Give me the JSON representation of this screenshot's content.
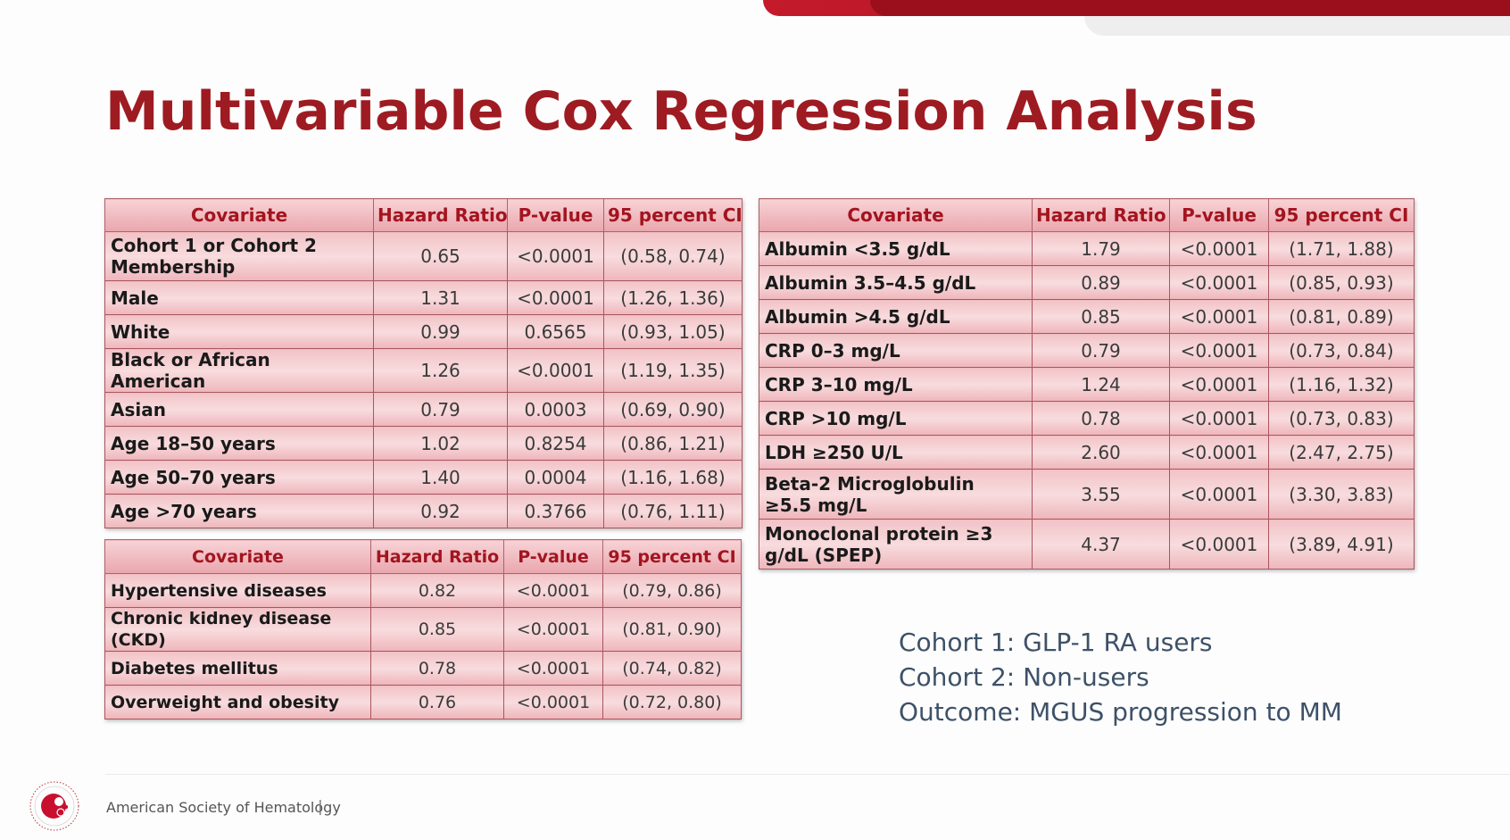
{
  "title": "Multivariable Cox Regression Analysis",
  "headers": {
    "covariate": "Covariate",
    "hazard_ratio": "Hazard Ratio",
    "p_value": "P-value",
    "ci": "95 percent CI"
  },
  "table_demographics": [
    {
      "covariate": "Cohort 1 or Cohort 2 Membership",
      "hr": "0.65",
      "p": "<0.0001",
      "ci": "(0.58, 0.74)"
    },
    {
      "covariate": "Male",
      "hr": "1.31",
      "p": "<0.0001",
      "ci": "(1.26, 1.36)"
    },
    {
      "covariate": "White",
      "hr": "0.99",
      "p": "0.6565",
      "ci": "(0.93, 1.05)"
    },
    {
      "covariate": "Black or African American",
      "hr": "1.26",
      "p": "<0.0001",
      "ci": "(1.19, 1.35)"
    },
    {
      "covariate": "Asian",
      "hr": "0.79",
      "p": "0.0003",
      "ci": "(0.69, 0.90)"
    },
    {
      "covariate": "Age 18–50 years",
      "hr": "1.02",
      "p": "0.8254",
      "ci": "(0.86, 1.21)"
    },
    {
      "covariate": "Age 50–70 years",
      "hr": "1.40",
      "p": "0.0004",
      "ci": "(1.16, 1.68)"
    },
    {
      "covariate": "Age >70 years",
      "hr": "0.92",
      "p": "0.3766",
      "ci": "(0.76, 1.11)"
    }
  ],
  "table_comorbidities": [
    {
      "covariate": "Hypertensive diseases",
      "hr": "0.82",
      "p": "<0.0001",
      "ci": "(0.79, 0.86)"
    },
    {
      "covariate": "Chronic kidney disease (CKD)",
      "hr": "0.85",
      "p": "<0.0001",
      "ci": "(0.81, 0.90)"
    },
    {
      "covariate": "Diabetes mellitus",
      "hr": "0.78",
      "p": "<0.0001",
      "ci": "(0.74, 0.82)"
    },
    {
      "covariate": "Overweight and obesity",
      "hr": "0.76",
      "p": "<0.0001",
      "ci": "(0.72, 0.80)"
    }
  ],
  "table_labs": [
    {
      "covariate": "Albumin <3.5 g/dL",
      "hr": "1.79",
      "p": "<0.0001",
      "ci": "(1.71, 1.88)"
    },
    {
      "covariate": "Albumin 3.5–4.5 g/dL",
      "hr": "0.89",
      "p": "<0.0001",
      "ci": "(0.85, 0.93)"
    },
    {
      "covariate": "Albumin >4.5 g/dL",
      "hr": "0.85",
      "p": "<0.0001",
      "ci": "(0.81, 0.89)"
    },
    {
      "covariate": "CRP 0–3 mg/L",
      "hr": "0.79",
      "p": "<0.0001",
      "ci": "(0.73, 0.84)"
    },
    {
      "covariate": "CRP 3–10 mg/L",
      "hr": "1.24",
      "p": "<0.0001",
      "ci": "(1.16, 1.32)"
    },
    {
      "covariate": "CRP >10 mg/L",
      "hr": "0.78",
      "p": "<0.0001",
      "ci": "(0.73, 0.83)"
    },
    {
      "covariate": "LDH ≥250 U/L",
      "hr": "2.60",
      "p": "<0.0001",
      "ci": "(2.47, 2.75)"
    },
    {
      "covariate": "Beta-2 Microglobulin ≥5.5 mg/L",
      "hr": "3.55",
      "p": "<0.0001",
      "ci": "(3.30, 3.83)"
    },
    {
      "covariate": "Monoclonal protein ≥3 g/dL (SPEP)",
      "hr": "4.37",
      "p": "<0.0001",
      "ci": "(3.89, 4.91)"
    }
  ],
  "notes": {
    "cohort1": "Cohort 1: GLP-1 RA users",
    "cohort2": "Cohort 2: Non-users",
    "outcome": "Outcome: MGUS progression to MM"
  },
  "footer": {
    "org": "American Society of Hematology",
    "separator": "|"
  },
  "colors": {
    "title": "#9e1b22",
    "accent_red": "#c41a2b",
    "header_text": "#a3141f",
    "cell_fill": "#f2c3c7",
    "notes_text": "#3d5168"
  },
  "icons": {
    "logo": "ash-logo-icon"
  }
}
